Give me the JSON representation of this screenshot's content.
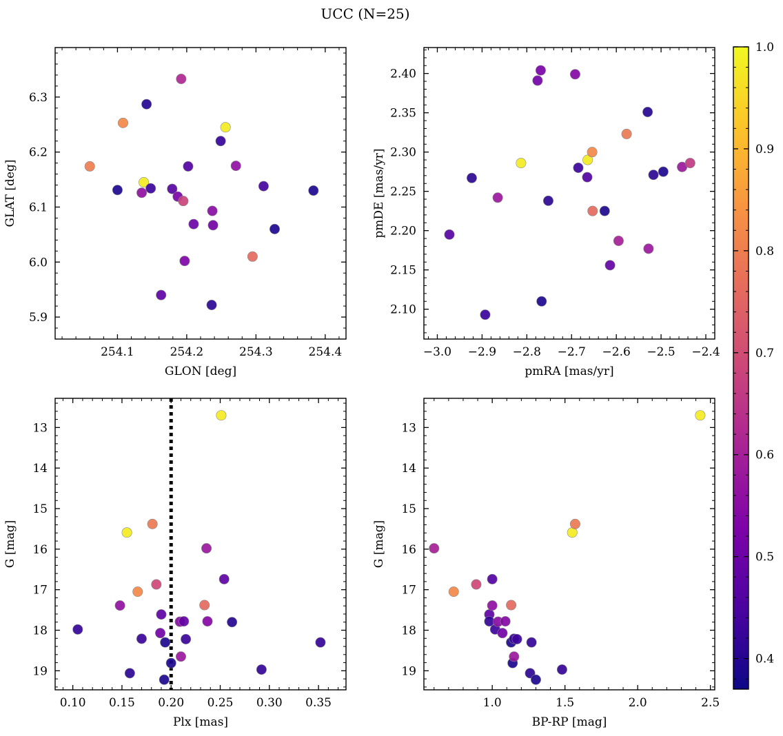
{
  "figure": {
    "title": "UCC (N=25)"
  },
  "colorbar": {
    "cmap": "plasma",
    "range": [
      0.37,
      1.0
    ],
    "ticks": [
      0.4,
      0.5,
      0.6,
      0.7,
      0.8,
      0.9,
      1.0
    ],
    "tick_labels": [
      "0.4",
      "0.5",
      "0.6",
      "0.7",
      "0.8",
      "0.9",
      "1.0"
    ]
  },
  "chart_data": [
    {
      "type": "scatter",
      "title": "",
      "xlabel": "GLON [deg]",
      "ylabel": "GLAT [deg]",
      "xlim": [
        254.01,
        254.43
      ],
      "ylim": [
        5.86,
        6.39
      ],
      "xticks": [
        254.1,
        254.2,
        254.3,
        254.4
      ],
      "xtick_labels": [
        "254.1",
        "254.2",
        "254.3",
        "254.4"
      ],
      "yticks": [
        5.9,
        6.0,
        6.1,
        6.2,
        6.3
      ],
      "ytick_labels": [
        "5.9",
        "6.0",
        "6.1",
        "6.2",
        "6.3"
      ],
      "x_reversed": false,
      "y_reversed": false,
      "grid": false,
      "points": [
        {
          "x": 254.06,
          "y": 6.174,
          "c": 0.8
        },
        {
          "x": 254.1,
          "y": 6.131,
          "c": 0.39
        },
        {
          "x": 254.108,
          "y": 6.253,
          "c": 0.82
        },
        {
          "x": 254.135,
          "y": 6.126,
          "c": 0.56
        },
        {
          "x": 254.138,
          "y": 6.145,
          "c": 0.98
        },
        {
          "x": 254.142,
          "y": 6.287,
          "c": 0.4
        },
        {
          "x": 254.148,
          "y": 6.134,
          "c": 0.43
        },
        {
          "x": 254.163,
          "y": 5.94,
          "c": 0.48
        },
        {
          "x": 254.179,
          "y": 6.133,
          "c": 0.47
        },
        {
          "x": 254.187,
          "y": 6.119,
          "c": 0.52
        },
        {
          "x": 254.192,
          "y": 6.333,
          "c": 0.62
        },
        {
          "x": 254.195,
          "y": 6.111,
          "c": 0.68
        },
        {
          "x": 254.197,
          "y": 6.002,
          "c": 0.53
        },
        {
          "x": 254.202,
          "y": 6.174,
          "c": 0.46
        },
        {
          "x": 254.21,
          "y": 6.069,
          "c": 0.5
        },
        {
          "x": 254.236,
          "y": 5.922,
          "c": 0.41
        },
        {
          "x": 254.237,
          "y": 6.093,
          "c": 0.55
        },
        {
          "x": 254.238,
          "y": 6.067,
          "c": 0.51
        },
        {
          "x": 254.249,
          "y": 6.22,
          "c": 0.42
        },
        {
          "x": 254.256,
          "y": 6.245,
          "c": 0.98
        },
        {
          "x": 254.271,
          "y": 6.175,
          "c": 0.56
        },
        {
          "x": 254.295,
          "y": 6.01,
          "c": 0.76
        },
        {
          "x": 254.311,
          "y": 6.138,
          "c": 0.44
        },
        {
          "x": 254.327,
          "y": 6.06,
          "c": 0.39
        },
        {
          "x": 254.383,
          "y": 6.13,
          "c": 0.39
        }
      ]
    },
    {
      "type": "scatter",
      "title": "",
      "xlabel": "pmRA [mas/yr]",
      "ylabel": "pmDE [mas/yr]",
      "xlim": [
        -3.03,
        -2.38
      ],
      "ylim": [
        2.062,
        2.433
      ],
      "xticks": [
        -3.0,
        -2.9,
        -2.8,
        -2.7,
        -2.6,
        -2.5,
        -2.4
      ],
      "xtick_labels": [
        "−3.0",
        "−2.9",
        "−2.8",
        "−2.7",
        "−2.6",
        "−2.5",
        "−2.4"
      ],
      "yticks": [
        2.1,
        2.15,
        2.2,
        2.25,
        2.3,
        2.35,
        2.4
      ],
      "ytick_labels": [
        "2.10",
        "2.15",
        "2.20",
        "2.25",
        "2.30",
        "2.35",
        "2.40"
      ],
      "x_reversed": false,
      "y_reversed": false,
      "grid": false,
      "points": [
        {
          "x": -2.973,
          "y": 2.195,
          "c": 0.47
        },
        {
          "x": -2.923,
          "y": 2.267,
          "c": 0.41
        },
        {
          "x": -2.893,
          "y": 2.093,
          "c": 0.43
        },
        {
          "x": -2.865,
          "y": 2.242,
          "c": 0.58
        },
        {
          "x": -2.813,
          "y": 2.286,
          "c": 0.98
        },
        {
          "x": -2.776,
          "y": 2.391,
          "c": 0.51
        },
        {
          "x": -2.769,
          "y": 2.404,
          "c": 0.52
        },
        {
          "x": -2.767,
          "y": 2.11,
          "c": 0.39
        },
        {
          "x": -2.752,
          "y": 2.238,
          "c": 0.41
        },
        {
          "x": -2.692,
          "y": 2.399,
          "c": 0.54
        },
        {
          "x": -2.685,
          "y": 2.28,
          "c": 0.43
        },
        {
          "x": -2.665,
          "y": 2.268,
          "c": 0.46
        },
        {
          "x": -2.664,
          "y": 2.29,
          "c": 0.98
        },
        {
          "x": -2.654,
          "y": 2.3,
          "c": 0.82
        },
        {
          "x": -2.653,
          "y": 2.225,
          "c": 0.76
        },
        {
          "x": -2.626,
          "y": 2.225,
          "c": 0.39
        },
        {
          "x": -2.614,
          "y": 2.156,
          "c": 0.49
        },
        {
          "x": -2.595,
          "y": 2.187,
          "c": 0.6
        },
        {
          "x": -2.577,
          "y": 2.323,
          "c": 0.79
        },
        {
          "x": -2.53,
          "y": 2.351,
          "c": 0.4
        },
        {
          "x": -2.528,
          "y": 2.177,
          "c": 0.58
        },
        {
          "x": -2.517,
          "y": 2.271,
          "c": 0.41
        },
        {
          "x": -2.495,
          "y": 2.275,
          "c": 0.39
        },
        {
          "x": -2.453,
          "y": 2.281,
          "c": 0.58
        },
        {
          "x": -2.435,
          "y": 2.286,
          "c": 0.66
        }
      ]
    },
    {
      "type": "scatter",
      "title": "",
      "xlabel": "Plx [mas]",
      "ylabel": "G [mag]",
      "xlim": [
        0.082,
        0.378
      ],
      "ylim": [
        12.28,
        19.47
      ],
      "xticks": [
        0.1,
        0.15,
        0.2,
        0.25,
        0.3,
        0.35
      ],
      "xtick_labels": [
        "0.10",
        "0.15",
        "0.20",
        "0.25",
        "0.30",
        "0.35"
      ],
      "yticks": [
        13,
        14,
        15,
        16,
        17,
        18,
        19
      ],
      "ytick_labels": [
        "13",
        "14",
        "15",
        "16",
        "17",
        "18",
        "19"
      ],
      "x_reversed": false,
      "y_reversed": true,
      "grid": false,
      "vline": {
        "x": 0.2,
        "style": "dotted",
        "color": "#000000"
      },
      "points": [
        {
          "x": 0.105,
          "y": 17.98,
          "c": 0.42
        },
        {
          "x": 0.148,
          "y": 17.39,
          "c": 0.56
        },
        {
          "x": 0.155,
          "y": 15.59,
          "c": 0.98
        },
        {
          "x": 0.158,
          "y": 19.06,
          "c": 0.41
        },
        {
          "x": 0.166,
          "y": 17.05,
          "c": 0.82
        },
        {
          "x": 0.17,
          "y": 18.21,
          "c": 0.43
        },
        {
          "x": 0.181,
          "y": 15.38,
          "c": 0.79
        },
        {
          "x": 0.185,
          "y": 16.87,
          "c": 0.69
        },
        {
          "x": 0.189,
          "y": 18.07,
          "c": 0.51
        },
        {
          "x": 0.19,
          "y": 17.61,
          "c": 0.48
        },
        {
          "x": 0.193,
          "y": 19.22,
          "c": 0.39
        },
        {
          "x": 0.194,
          "y": 18.3,
          "c": 0.39
        },
        {
          "x": 0.2,
          "y": 18.81,
          "c": 0.39
        },
        {
          "x": 0.209,
          "y": 17.79,
          "c": 0.55
        },
        {
          "x": 0.21,
          "y": 18.65,
          "c": 0.58
        },
        {
          "x": 0.213,
          "y": 17.78,
          "c": 0.49
        },
        {
          "x": 0.215,
          "y": 18.22,
          "c": 0.43
        },
        {
          "x": 0.234,
          "y": 17.38,
          "c": 0.76
        },
        {
          "x": 0.236,
          "y": 15.98,
          "c": 0.58
        },
        {
          "x": 0.237,
          "y": 17.78,
          "c": 0.54
        },
        {
          "x": 0.251,
          "y": 12.7,
          "c": 0.98
        },
        {
          "x": 0.254,
          "y": 16.74,
          "c": 0.48
        },
        {
          "x": 0.262,
          "y": 17.8,
          "c": 0.4
        },
        {
          "x": 0.292,
          "y": 18.97,
          "c": 0.42
        },
        {
          "x": 0.352,
          "y": 18.3,
          "c": 0.42
        }
      ]
    },
    {
      "type": "scatter",
      "title": "",
      "xlabel": "BP-RP [mag]",
      "ylabel": "G [mag]",
      "xlim": [
        0.53,
        2.53
      ],
      "ylim": [
        12.28,
        19.47
      ],
      "xticks": [
        1.0,
        1.5,
        2.0,
        2.5
      ],
      "xtick_labels": [
        "1.0",
        "1.5",
        "2.0",
        "2.5"
      ],
      "yticks": [
        13,
        14,
        15,
        16,
        17,
        18,
        19
      ],
      "ytick_labels": [
        "13",
        "14",
        "15",
        "16",
        "17",
        "18",
        "19"
      ],
      "x_reversed": false,
      "y_reversed": true,
      "grid": false,
      "points": [
        {
          "x": 0.6,
          "y": 15.98,
          "c": 0.6
        },
        {
          "x": 0.735,
          "y": 17.05,
          "c": 0.82
        },
        {
          "x": 0.89,
          "y": 16.87,
          "c": 0.69
        },
        {
          "x": 0.98,
          "y": 17.61,
          "c": 0.48
        },
        {
          "x": 0.98,
          "y": 17.78,
          "c": 0.42
        },
        {
          "x": 1.0,
          "y": 16.74,
          "c": 0.46
        },
        {
          "x": 1.0,
          "y": 17.39,
          "c": 0.56
        },
        {
          "x": 1.02,
          "y": 17.98,
          "c": 0.43
        },
        {
          "x": 1.04,
          "y": 17.79,
          "c": 0.55
        },
        {
          "x": 1.07,
          "y": 18.07,
          "c": 0.51
        },
        {
          "x": 1.09,
          "y": 17.78,
          "c": 0.54
        },
        {
          "x": 1.13,
          "y": 17.38,
          "c": 0.76
        },
        {
          "x": 1.13,
          "y": 18.3,
          "c": 0.39
        },
        {
          "x": 1.14,
          "y": 18.81,
          "c": 0.39
        },
        {
          "x": 1.15,
          "y": 18.21,
          "c": 0.43
        },
        {
          "x": 1.15,
          "y": 18.65,
          "c": 0.58
        },
        {
          "x": 1.17,
          "y": 18.22,
          "c": 0.43
        },
        {
          "x": 1.26,
          "y": 19.06,
          "c": 0.41
        },
        {
          "x": 1.27,
          "y": 18.3,
          "c": 0.42
        },
        {
          "x": 1.3,
          "y": 19.22,
          "c": 0.39
        },
        {
          "x": 1.48,
          "y": 18.97,
          "c": 0.42
        },
        {
          "x": 1.55,
          "y": 15.59,
          "c": 0.98
        },
        {
          "x": 1.57,
          "y": 15.38,
          "c": 0.79
        },
        {
          "x": 2.43,
          "y": 12.7,
          "c": 0.98
        }
      ]
    }
  ]
}
